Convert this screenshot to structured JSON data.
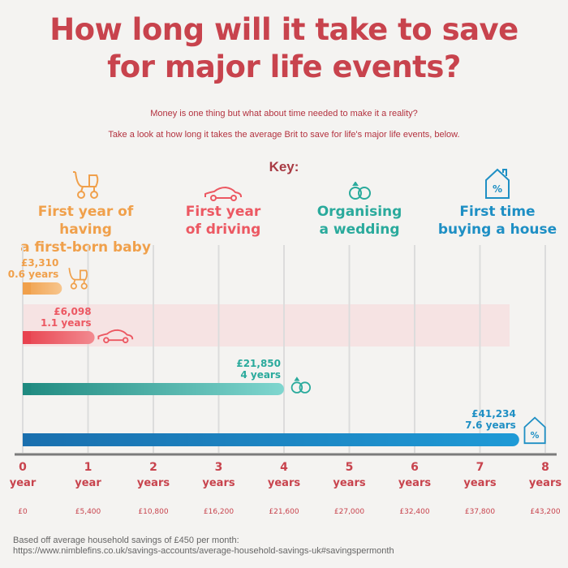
{
  "title_line1": "How long will it take to save",
  "title_line2": "for major life events?",
  "subtitle1": "Money is one thing but what about time needed to make it a reality?",
  "subtitle2": "Take a look at how long it takes the average Brit to save for life's major life events, below.",
  "key_title": "Key:",
  "key": [
    {
      "label": "First year of having\na first-born baby",
      "color": "#f0a04b",
      "icon": "baby-stroller-icon"
    },
    {
      "label": "First year\nof driving",
      "color": "#ec5862",
      "icon": "car-icon"
    },
    {
      "label": "Organising\na wedding",
      "color": "#2aaa9c",
      "icon": "wedding-rings-icon"
    },
    {
      "label": "First time\nbuying a house",
      "color": "#1e8fc4",
      "icon": "house-icon"
    }
  ],
  "chart_data": {
    "type": "bar",
    "orientation": "horizontal",
    "series": [
      {
        "name": "First year of having a first-born baby",
        "amount": "£3,310",
        "years_label": "0.6 years",
        "value": 0.6,
        "color": "#f0a04b"
      },
      {
        "name": "First year of driving",
        "amount": "£6,098",
        "years_label": "1.1 years",
        "value": 1.1,
        "color": "#ec5862"
      },
      {
        "name": "Organising a wedding",
        "amount": "£21,850",
        "years_label": "4 years",
        "value": 4,
        "color": "#2aaa9c"
      },
      {
        "name": "First time buying a house",
        "amount": "£41,234",
        "years_label": "7.6 years",
        "value": 7.6,
        "color": "#1e8fc4"
      }
    ],
    "xlim": [
      0,
      8
    ],
    "ticks": [
      {
        "value": 0,
        "num": "0",
        "unit": "year",
        "money": "£0"
      },
      {
        "value": 1,
        "num": "1",
        "unit": "year",
        "money": "£5,400"
      },
      {
        "value": 2,
        "num": "2",
        "unit": "years",
        "money": "£10,800"
      },
      {
        "value": 3,
        "num": "3",
        "unit": "years",
        "money": "£16,200"
      },
      {
        "value": 4,
        "num": "4",
        "unit": "years",
        "money": "£21,600"
      },
      {
        "value": 5,
        "num": "5",
        "unit": "years",
        "money": "£27,000"
      },
      {
        "value": 6,
        "num": "6",
        "unit": "years",
        "money": "£32,400"
      },
      {
        "value": 7,
        "num": "7",
        "unit": "years",
        "money": "£37,800"
      },
      {
        "value": 8,
        "num": "8",
        "unit": "years",
        "money": "£43,200"
      }
    ],
    "grid": true,
    "axis_color": "#c8434d"
  },
  "footer_line1": "Based off average household savings of £450 per month:",
  "footer_line2": "https://www.nimblefins.co.uk/savings-accounts/average-household-savings-uk#savingspermonth"
}
